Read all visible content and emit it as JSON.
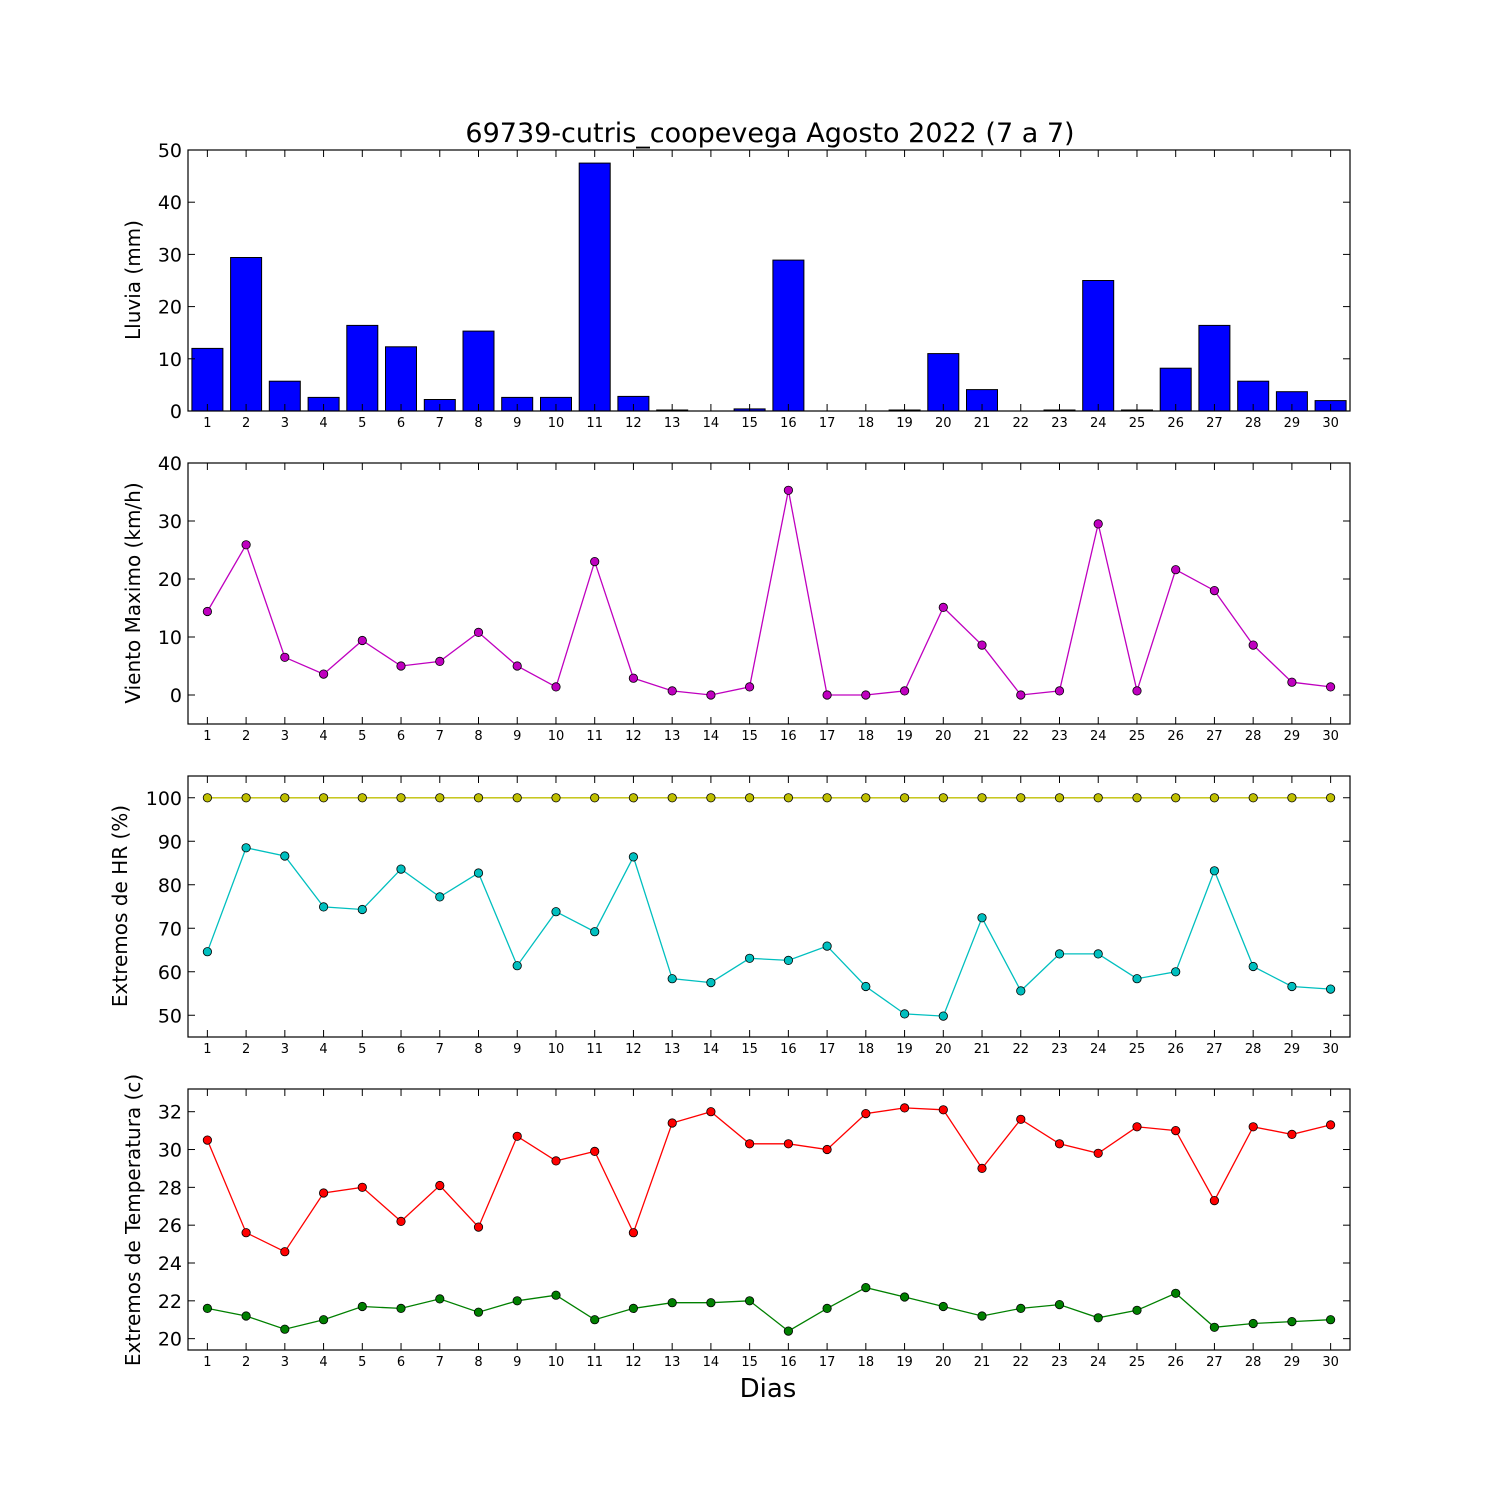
{
  "title": "69739-cutris_coopevega Agosto 2022  (7 a 7)",
  "xlabel": "Dias",
  "chart_data": [
    {
      "type": "bar",
      "ylabel": "Lluvia (mm)",
      "ylim": [
        0,
        50
      ],
      "yticks": [
        0,
        10,
        20,
        30,
        40,
        50
      ],
      "x": [
        1,
        2,
        3,
        4,
        5,
        6,
        7,
        8,
        9,
        10,
        11,
        12,
        13,
        14,
        15,
        16,
        17,
        18,
        19,
        20,
        21,
        22,
        23,
        24,
        25,
        26,
        27,
        28,
        29,
        30
      ],
      "series": [
        {
          "color": "#0000ff",
          "values": [
            12.0,
            29.4,
            5.7,
            2.6,
            16.4,
            12.3,
            2.2,
            15.3,
            2.6,
            2.6,
            47.5,
            2.8,
            0.2,
            0.0,
            0.4,
            28.9,
            0.0,
            0.0,
            0.2,
            11.0,
            4.1,
            0.0,
            0.2,
            25.0,
            0.2,
            8.2,
            16.4,
            5.7,
            3.7,
            2.0
          ]
        }
      ]
    },
    {
      "type": "line",
      "ylabel": "Viento Maximo (km/h)",
      "ylim": [
        -5,
        40
      ],
      "yticks": [
        0,
        10,
        20,
        30,
        40
      ],
      "x": [
        1,
        2,
        3,
        4,
        5,
        6,
        7,
        8,
        9,
        10,
        11,
        12,
        13,
        14,
        15,
        16,
        17,
        18,
        19,
        20,
        21,
        22,
        23,
        24,
        25,
        26,
        27,
        28,
        29,
        30
      ],
      "series": [
        {
          "color": "#bf00bf",
          "values": [
            14.4,
            25.9,
            6.5,
            3.6,
            9.4,
            5.0,
            5.8,
            10.8,
            5.0,
            1.4,
            23.0,
            2.9,
            0.7,
            0.0,
            1.4,
            35.3,
            0.0,
            0.0,
            0.7,
            15.1,
            8.6,
            0.0,
            0.7,
            29.5,
            0.7,
            21.6,
            18.0,
            8.6,
            2.2,
            1.4
          ]
        }
      ]
    },
    {
      "type": "line",
      "ylabel": "Extremos de HR (%)",
      "ylim": [
        45,
        105
      ],
      "yticks": [
        50,
        60,
        70,
        80,
        90,
        100
      ],
      "x": [
        1,
        2,
        3,
        4,
        5,
        6,
        7,
        8,
        9,
        10,
        11,
        12,
        13,
        14,
        15,
        16,
        17,
        18,
        19,
        20,
        21,
        22,
        23,
        24,
        25,
        26,
        27,
        28,
        29,
        30
      ],
      "series": [
        {
          "color": "#bfbf00",
          "values": [
            100,
            100,
            100,
            100,
            100,
            100,
            100,
            100,
            100,
            100,
            100,
            100,
            100,
            100,
            100,
            100,
            100,
            100,
            100,
            100,
            100,
            100,
            100,
            100,
            100,
            100,
            100,
            100,
            100,
            100
          ]
        },
        {
          "color": "#00bfbf",
          "values": [
            64.6,
            88.5,
            86.6,
            74.9,
            74.3,
            83.6,
            77.2,
            82.7,
            61.4,
            73.8,
            69.2,
            86.4,
            58.4,
            57.5,
            63.1,
            62.6,
            65.9,
            56.6,
            50.3,
            49.8,
            72.4,
            55.6,
            64.1,
            64.1,
            58.4,
            60.0,
            83.2,
            61.2,
            56.6,
            56.0
          ]
        }
      ]
    },
    {
      "type": "line",
      "ylabel": "Extremos de Temperatura (c)",
      "ylim": [
        19.4,
        33.2
      ],
      "yticks": [
        20,
        22,
        24,
        26,
        28,
        30,
        32
      ],
      "x": [
        1,
        2,
        3,
        4,
        5,
        6,
        7,
        8,
        9,
        10,
        11,
        12,
        13,
        14,
        15,
        16,
        17,
        18,
        19,
        20,
        21,
        22,
        23,
        24,
        25,
        26,
        27,
        28,
        29,
        30
      ],
      "series": [
        {
          "color": "#ff0000",
          "values": [
            30.5,
            25.6,
            24.6,
            27.7,
            28.0,
            26.2,
            28.1,
            25.9,
            30.7,
            29.4,
            29.9,
            25.6,
            31.4,
            32.0,
            30.3,
            30.3,
            30.0,
            31.9,
            32.2,
            32.1,
            29.0,
            31.6,
            30.3,
            29.8,
            31.2,
            31.0,
            27.3,
            31.2,
            30.8,
            31.3
          ]
        },
        {
          "color": "#008000",
          "values": [
            21.6,
            21.2,
            20.5,
            21.0,
            21.7,
            21.6,
            22.1,
            21.4,
            22.0,
            22.3,
            21.0,
            21.6,
            21.9,
            21.9,
            22.0,
            20.4,
            21.6,
            22.7,
            22.2,
            21.7,
            21.2,
            21.6,
            21.8,
            21.1,
            21.5,
            22.4,
            20.6,
            20.8,
            20.9,
            21.0
          ]
        }
      ]
    }
  ]
}
